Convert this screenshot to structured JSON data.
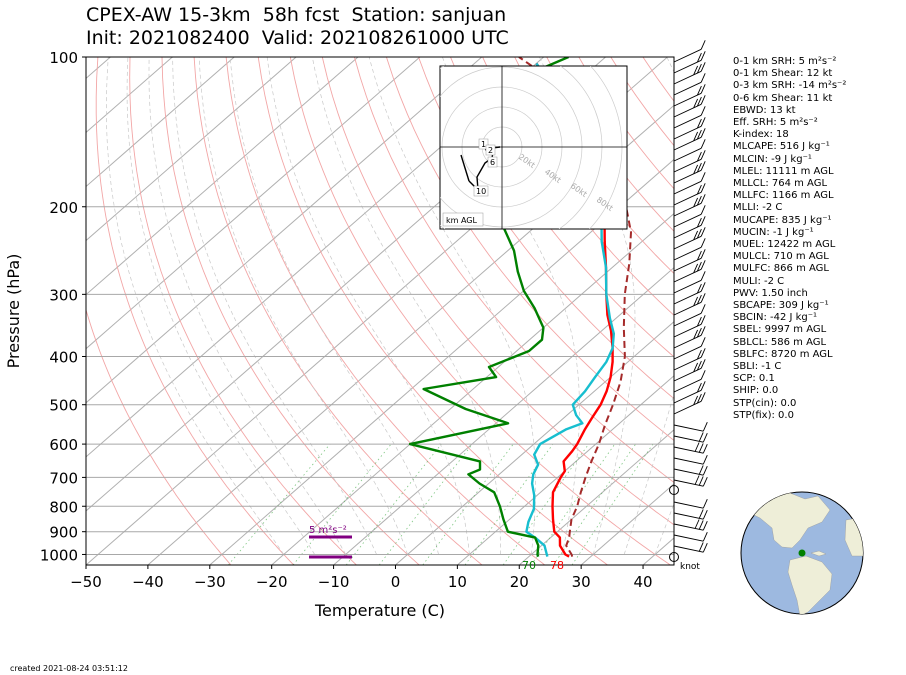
{
  "title_line1": "CPEX-AW 15-3km  58h fcst  Station: sanjuan",
  "title_line2": "Init: 2021082400  Valid: 202108261000 UTC",
  "created": "created 2021-08-24 03:51:12",
  "stats": [
    "0-1 km SRH: 5 m²s⁻²",
    "0-1 km Shear: 12 kt",
    "0-3 km SRH: -14 m²s⁻²",
    "0-6 km Shear: 11 kt",
    "EBWD: 13 kt",
    "Eff. SRH: 5 m²s⁻²",
    "K-index: 18",
    "MLCAPE: 516 J kg⁻¹",
    "MLCIN: -9 J kg⁻¹",
    "MLEL: 11111 m AGL",
    "MLLCL: 764 m AGL",
    "MLLFC: 1166 m AGL",
    "MLLI: -2 C",
    "MUCAPE: 835 J kg⁻¹",
    "MUCIN: -1 J kg⁻¹",
    "MUEL: 12422 m AGL",
    "MULCL: 710 m AGL",
    "MULFC: 866 m AGL",
    "MULI: -2 C",
    "PWV: 1.50 inch",
    "SBCAPE: 309 J kg⁻¹",
    "SBCIN: -42 J kg⁻¹",
    "SBEL: 9997 m AGL",
    "SBLCL: 586 m AGL",
    "SBLFC: 8720 m AGL",
    "SBLI: -1 C",
    "SCP: 0.1",
    "SHIP: 0.0",
    "STP(cin): 0.0",
    "STP(fix): 0.0"
  ],
  "chart_data": {
    "type": "line",
    "subtype": "skew-T log-p",
    "xlabel": "Temperature (C)",
    "ylabel": "Pressure (hPa)",
    "xlim": [
      -50,
      45
    ],
    "ylim": [
      1050,
      100
    ],
    "y_scale": "log",
    "xticks": [
      -50,
      -40,
      -30,
      -20,
      -10,
      0,
      10,
      20,
      30,
      40
    ],
    "yticks": [
      100,
      200,
      300,
      400,
      500,
      600,
      700,
      800,
      900,
      1000
    ],
    "skew_deg_per_decade": 92,
    "series": [
      {
        "role": "temperature",
        "color": "#ff0000",
        "points": [
          [
            26.5,
            1010
          ],
          [
            25.5,
            1000
          ],
          [
            23.0,
            960
          ],
          [
            21.5,
            925
          ],
          [
            19.5,
            900
          ],
          [
            17.0,
            850
          ],
          [
            14.5,
            800
          ],
          [
            12.0,
            750
          ],
          [
            10.5,
            700
          ],
          [
            10.0,
            680
          ],
          [
            8.0,
            650
          ],
          [
            7.5,
            620
          ],
          [
            7.0,
            600
          ],
          [
            5.5,
            560
          ],
          [
            4.5,
            530
          ],
          [
            3.5,
            500
          ],
          [
            2.0,
            470
          ],
          [
            0.0,
            440
          ],
          [
            -2.5,
            410
          ],
          [
            -5.0,
            385
          ],
          [
            -8.5,
            355
          ],
          [
            -12.0,
            330
          ],
          [
            -16.0,
            300
          ],
          [
            -21.0,
            265
          ],
          [
            -26.0,
            235
          ],
          [
            -31.5,
            205
          ],
          [
            -38.0,
            175
          ],
          [
            -46.0,
            150
          ],
          [
            -52.0,
            135
          ],
          [
            -63.0,
            115
          ],
          [
            -70.0,
            103
          ]
        ]
      },
      {
        "role": "wet-bulb",
        "color": "#17becf",
        "points": [
          [
            23.0,
            1010
          ],
          [
            22.5,
            1000
          ],
          [
            20.5,
            960
          ],
          [
            17.5,
            925
          ],
          [
            15.0,
            900
          ],
          [
            13.5,
            860
          ],
          [
            12.0,
            810
          ],
          [
            9.5,
            760
          ],
          [
            7.0,
            720
          ],
          [
            5.5,
            690
          ],
          [
            4.5,
            660
          ],
          [
            2.0,
            630
          ],
          [
            1.0,
            600
          ],
          [
            2.5,
            560
          ],
          [
            4.0,
            545
          ],
          [
            1.5,
            525
          ],
          [
            -1.0,
            500
          ],
          [
            -1.5,
            470
          ],
          [
            -2.5,
            440
          ],
          [
            -3.5,
            410
          ],
          [
            -5.0,
            385
          ],
          [
            -7.5,
            360
          ],
          [
            -11.0,
            335
          ],
          [
            -16.0,
            300
          ],
          [
            -21.0,
            265
          ],
          [
            -26.5,
            235
          ],
          [
            -32.0,
            205
          ],
          [
            -38.0,
            175
          ],
          [
            -46.0,
            150
          ],
          [
            -52.0,
            135
          ],
          [
            -63.0,
            115
          ],
          [
            -70.0,
            103
          ]
        ]
      },
      {
        "role": "dewpoint",
        "color": "#008000",
        "points": [
          [
            21.5,
            1010
          ],
          [
            21.0,
            1000
          ],
          [
            19.5,
            960
          ],
          [
            17.5,
            925
          ],
          [
            12.0,
            900
          ],
          [
            9.0,
            850
          ],
          [
            6.0,
            800
          ],
          [
            2.5,
            750
          ],
          [
            -1.5,
            720
          ],
          [
            -5.0,
            690
          ],
          [
            -4.0,
            675
          ],
          [
            -5.5,
            650
          ],
          [
            -20.0,
            600
          ],
          [
            -8.0,
            545
          ],
          [
            -17.5,
            510
          ],
          [
            -28.0,
            465
          ],
          [
            -18.5,
            440
          ],
          [
            -21.5,
            420
          ],
          [
            -18.0,
            390
          ],
          [
            -18.0,
            370
          ],
          [
            -20.0,
            350
          ],
          [
            -25.0,
            320
          ],
          [
            -30.0,
            295
          ],
          [
            -34.5,
            270
          ],
          [
            -39.0,
            245
          ],
          [
            -45.0,
            220
          ],
          [
            -49.0,
            200
          ],
          [
            -49.0,
            180
          ],
          [
            -52.0,
            160
          ],
          [
            -56.0,
            140
          ],
          [
            -60.0,
            125
          ],
          [
            -67.5,
            115
          ],
          [
            -68.0,
            105
          ],
          [
            -66.0,
            100
          ]
        ]
      },
      {
        "role": "parcel",
        "color": "#a52a2a",
        "dashed": true,
        "points": [
          [
            27.0,
            1010
          ],
          [
            26.5,
            1000
          ],
          [
            24.0,
            960
          ],
          [
            23.0,
            925
          ],
          [
            22.0,
            900
          ],
          [
            20.0,
            850
          ],
          [
            18.5,
            800
          ],
          [
            16.5,
            750
          ],
          [
            14.5,
            700
          ],
          [
            12.5,
            650
          ],
          [
            10.5,
            600
          ],
          [
            8.0,
            550
          ],
          [
            5.5,
            500
          ],
          [
            2.5,
            450
          ],
          [
            -1.5,
            400
          ],
          [
            -7.0,
            350
          ],
          [
            -13.0,
            300
          ],
          [
            -18.0,
            260
          ],
          [
            -23.5,
            225
          ],
          [
            -29.0,
            200
          ],
          [
            -35.0,
            175
          ],
          [
            -43.0,
            150
          ],
          [
            -52.0,
            130
          ],
          [
            -63.0,
            113
          ],
          [
            -74.0,
            100
          ]
        ]
      }
    ],
    "annotations": {
      "surface_temperature_label": "78",
      "surface_dewpoint_label": "70",
      "srh_label": "5 m²s⁻²",
      "wind_unit_label": "knot"
    },
    "hodograph": {
      "footer": "km AGL",
      "height_labels": [
        "1",
        "2",
        "6",
        "10"
      ],
      "ring_labels": [
        "20kt",
        "40kt",
        "60kt",
        "80kt"
      ]
    }
  }
}
